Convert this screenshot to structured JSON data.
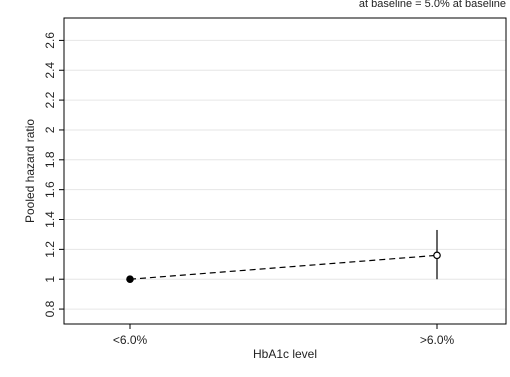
{
  "chart_data": {
    "type": "line",
    "top_text": "at baseline = 5.0% at baseline",
    "title": "",
    "xlabel": "HbA1c level",
    "ylabel": "Pooled hazard ratio",
    "categories": [
      "<6.0%",
      ">6.0%"
    ],
    "ylim": [
      0.7,
      2.75
    ],
    "yticks": [
      0.8,
      1,
      1.2,
      1.4,
      1.6,
      1.8,
      2,
      2.2,
      2.4,
      2.6
    ],
    "ytick_labels": [
      "0.8",
      "1",
      "1.2",
      "1.4",
      "1.6",
      "1.8",
      "2",
      "2.2",
      "2.4",
      "2.6"
    ],
    "grid": true,
    "legend": "none",
    "series": [
      {
        "values": [
          1.0,
          1.16
        ],
        "ci_lower": [
          null,
          1.0
        ],
        "ci_upper": [
          null,
          1.33
        ],
        "markers": [
          "filled-circle",
          "open-circle"
        ],
        "line_style": "dashed"
      }
    ]
  }
}
